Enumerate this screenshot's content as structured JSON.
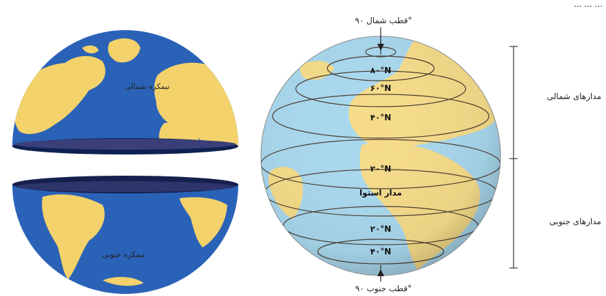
{
  "header_text": "... ... ...",
  "hemispheres": {
    "northern_label": "نیمکره شمالی",
    "southern_label": "نیمکره جنوبی"
  },
  "globe": {
    "north_pole": "قطب شمال ۹۰°",
    "south_pole": "قطب جنوب ۹۰°",
    "equator": "مدار استوا",
    "lat_80n": "۸۰°N",
    "lat_60n": "۶۰°N",
    "lat_40n": "۴۰°N",
    "lat_20n": "۲۰°N",
    "lat_20s": "۲۰°N",
    "lat_40s": "۴۰°N"
  },
  "side_labels": {
    "northern_parallels": "مدارهای شمالی",
    "southern_parallels": "مدارهای جنوبی"
  },
  "colors": {
    "ocean_dark": "#2a62b8",
    "land": "#f3d26b",
    "globe_ocean": "#a9d8ee",
    "globe_land": "#f6dc8a"
  }
}
